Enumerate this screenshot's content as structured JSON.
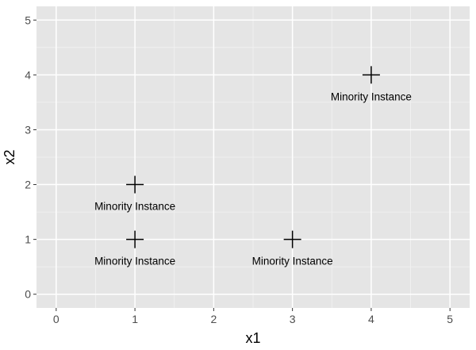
{
  "chart_data": {
    "type": "scatter",
    "xlabel": "x1",
    "ylabel": "x2",
    "xlim": [
      -0.25,
      5.25
    ],
    "ylim": [
      -0.25,
      5.25
    ],
    "x_ticks": [
      0,
      1,
      2,
      3,
      4,
      5
    ],
    "y_ticks": [
      0,
      1,
      2,
      3,
      4,
      5
    ],
    "grid": true,
    "marker": "plus",
    "points": [
      {
        "x": 1,
        "y": 1,
        "label": "Minority Instance"
      },
      {
        "x": 1,
        "y": 2,
        "label": "Minority Instance"
      },
      {
        "x": 3,
        "y": 1,
        "label": "Minority Instance"
      },
      {
        "x": 4,
        "y": 4,
        "label": "Minority Instance"
      }
    ],
    "colors": {
      "panel_background": "#e5e5e5",
      "grid_major": "#ffffff",
      "grid_minor": "#f2f2f2",
      "point": "#000000"
    }
  }
}
